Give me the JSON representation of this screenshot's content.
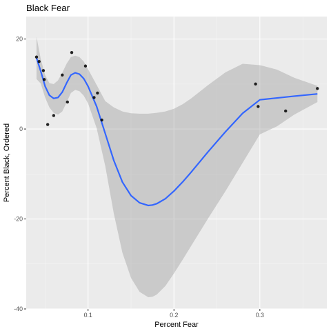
{
  "chart_data": {
    "type": "scatter",
    "title": "Black Fear",
    "xlabel": "Percent Fear",
    "ylabel": "Percent Black, Ordered",
    "xlim": [
      0.028,
      0.378
    ],
    "ylim": [
      -40,
      25
    ],
    "x_ticks": [
      0.1,
      0.2,
      0.3
    ],
    "x_tick_labels": [
      "0.1",
      "0.2",
      "0.3"
    ],
    "x_minor_ticks": [
      0.05,
      0.15,
      0.25,
      0.35
    ],
    "y_ticks": [
      -40,
      -20,
      0,
      20
    ],
    "y_tick_labels": [
      "-40",
      "-20",
      "0",
      "20"
    ],
    "y_minor_ticks": [
      -30,
      -10,
      10
    ],
    "grid": true,
    "points": [
      {
        "x": 0.04,
        "y": 16
      },
      {
        "x": 0.043,
        "y": 15
      },
      {
        "x": 0.048,
        "y": 13
      },
      {
        "x": 0.049,
        "y": 11
      },
      {
        "x": 0.053,
        "y": 1
      },
      {
        "x": 0.06,
        "y": 3
      },
      {
        "x": 0.07,
        "y": 12
      },
      {
        "x": 0.076,
        "y": 6
      },
      {
        "x": 0.081,
        "y": 17
      },
      {
        "x": 0.097,
        "y": 14
      },
      {
        "x": 0.107,
        "y": 7
      },
      {
        "x": 0.111,
        "y": 8
      },
      {
        "x": 0.116,
        "y": 2
      },
      {
        "x": 0.295,
        "y": 10
      },
      {
        "x": 0.298,
        "y": 5
      },
      {
        "x": 0.33,
        "y": 4
      },
      {
        "x": 0.367,
        "y": 9
      }
    ],
    "smooth": {
      "x": [
        0.04,
        0.045,
        0.05,
        0.055,
        0.06,
        0.065,
        0.07,
        0.075,
        0.08,
        0.085,
        0.09,
        0.095,
        0.1,
        0.11,
        0.12,
        0.13,
        0.14,
        0.15,
        0.16,
        0.17,
        0.175,
        0.18,
        0.19,
        0.2,
        0.21,
        0.22,
        0.24,
        0.26,
        0.28,
        0.3,
        0.32,
        0.34,
        0.367
      ],
      "y": [
        15.8,
        12.8,
        9.5,
        7.5,
        6.8,
        7.0,
        8.2,
        10.2,
        12.0,
        12.5,
        12.2,
        11.2,
        9.5,
        5.0,
        -1.0,
        -7.0,
        -11.8,
        -14.8,
        -16.4,
        -17.0,
        -16.9,
        -16.6,
        -15.5,
        -13.8,
        -11.8,
        -9.6,
        -5.0,
        -0.6,
        3.5,
        6.5,
        6.9,
        7.3,
        7.8
      ],
      "lower": [
        20.5,
        15.5,
        12.0,
        10.2,
        10.0,
        10.8,
        12.5,
        14.5,
        16.0,
        16.3,
        16.0,
        15.0,
        13.3,
        9.8,
        6.2,
        4.8,
        3.9,
        3.5,
        3.4,
        3.4,
        3.5,
        3.6,
        3.9,
        4.5,
        5.5,
        6.8,
        9.8,
        12.6,
        14.5,
        14.2,
        13.2,
        11.4,
        9.6
      ]
    }
  }
}
